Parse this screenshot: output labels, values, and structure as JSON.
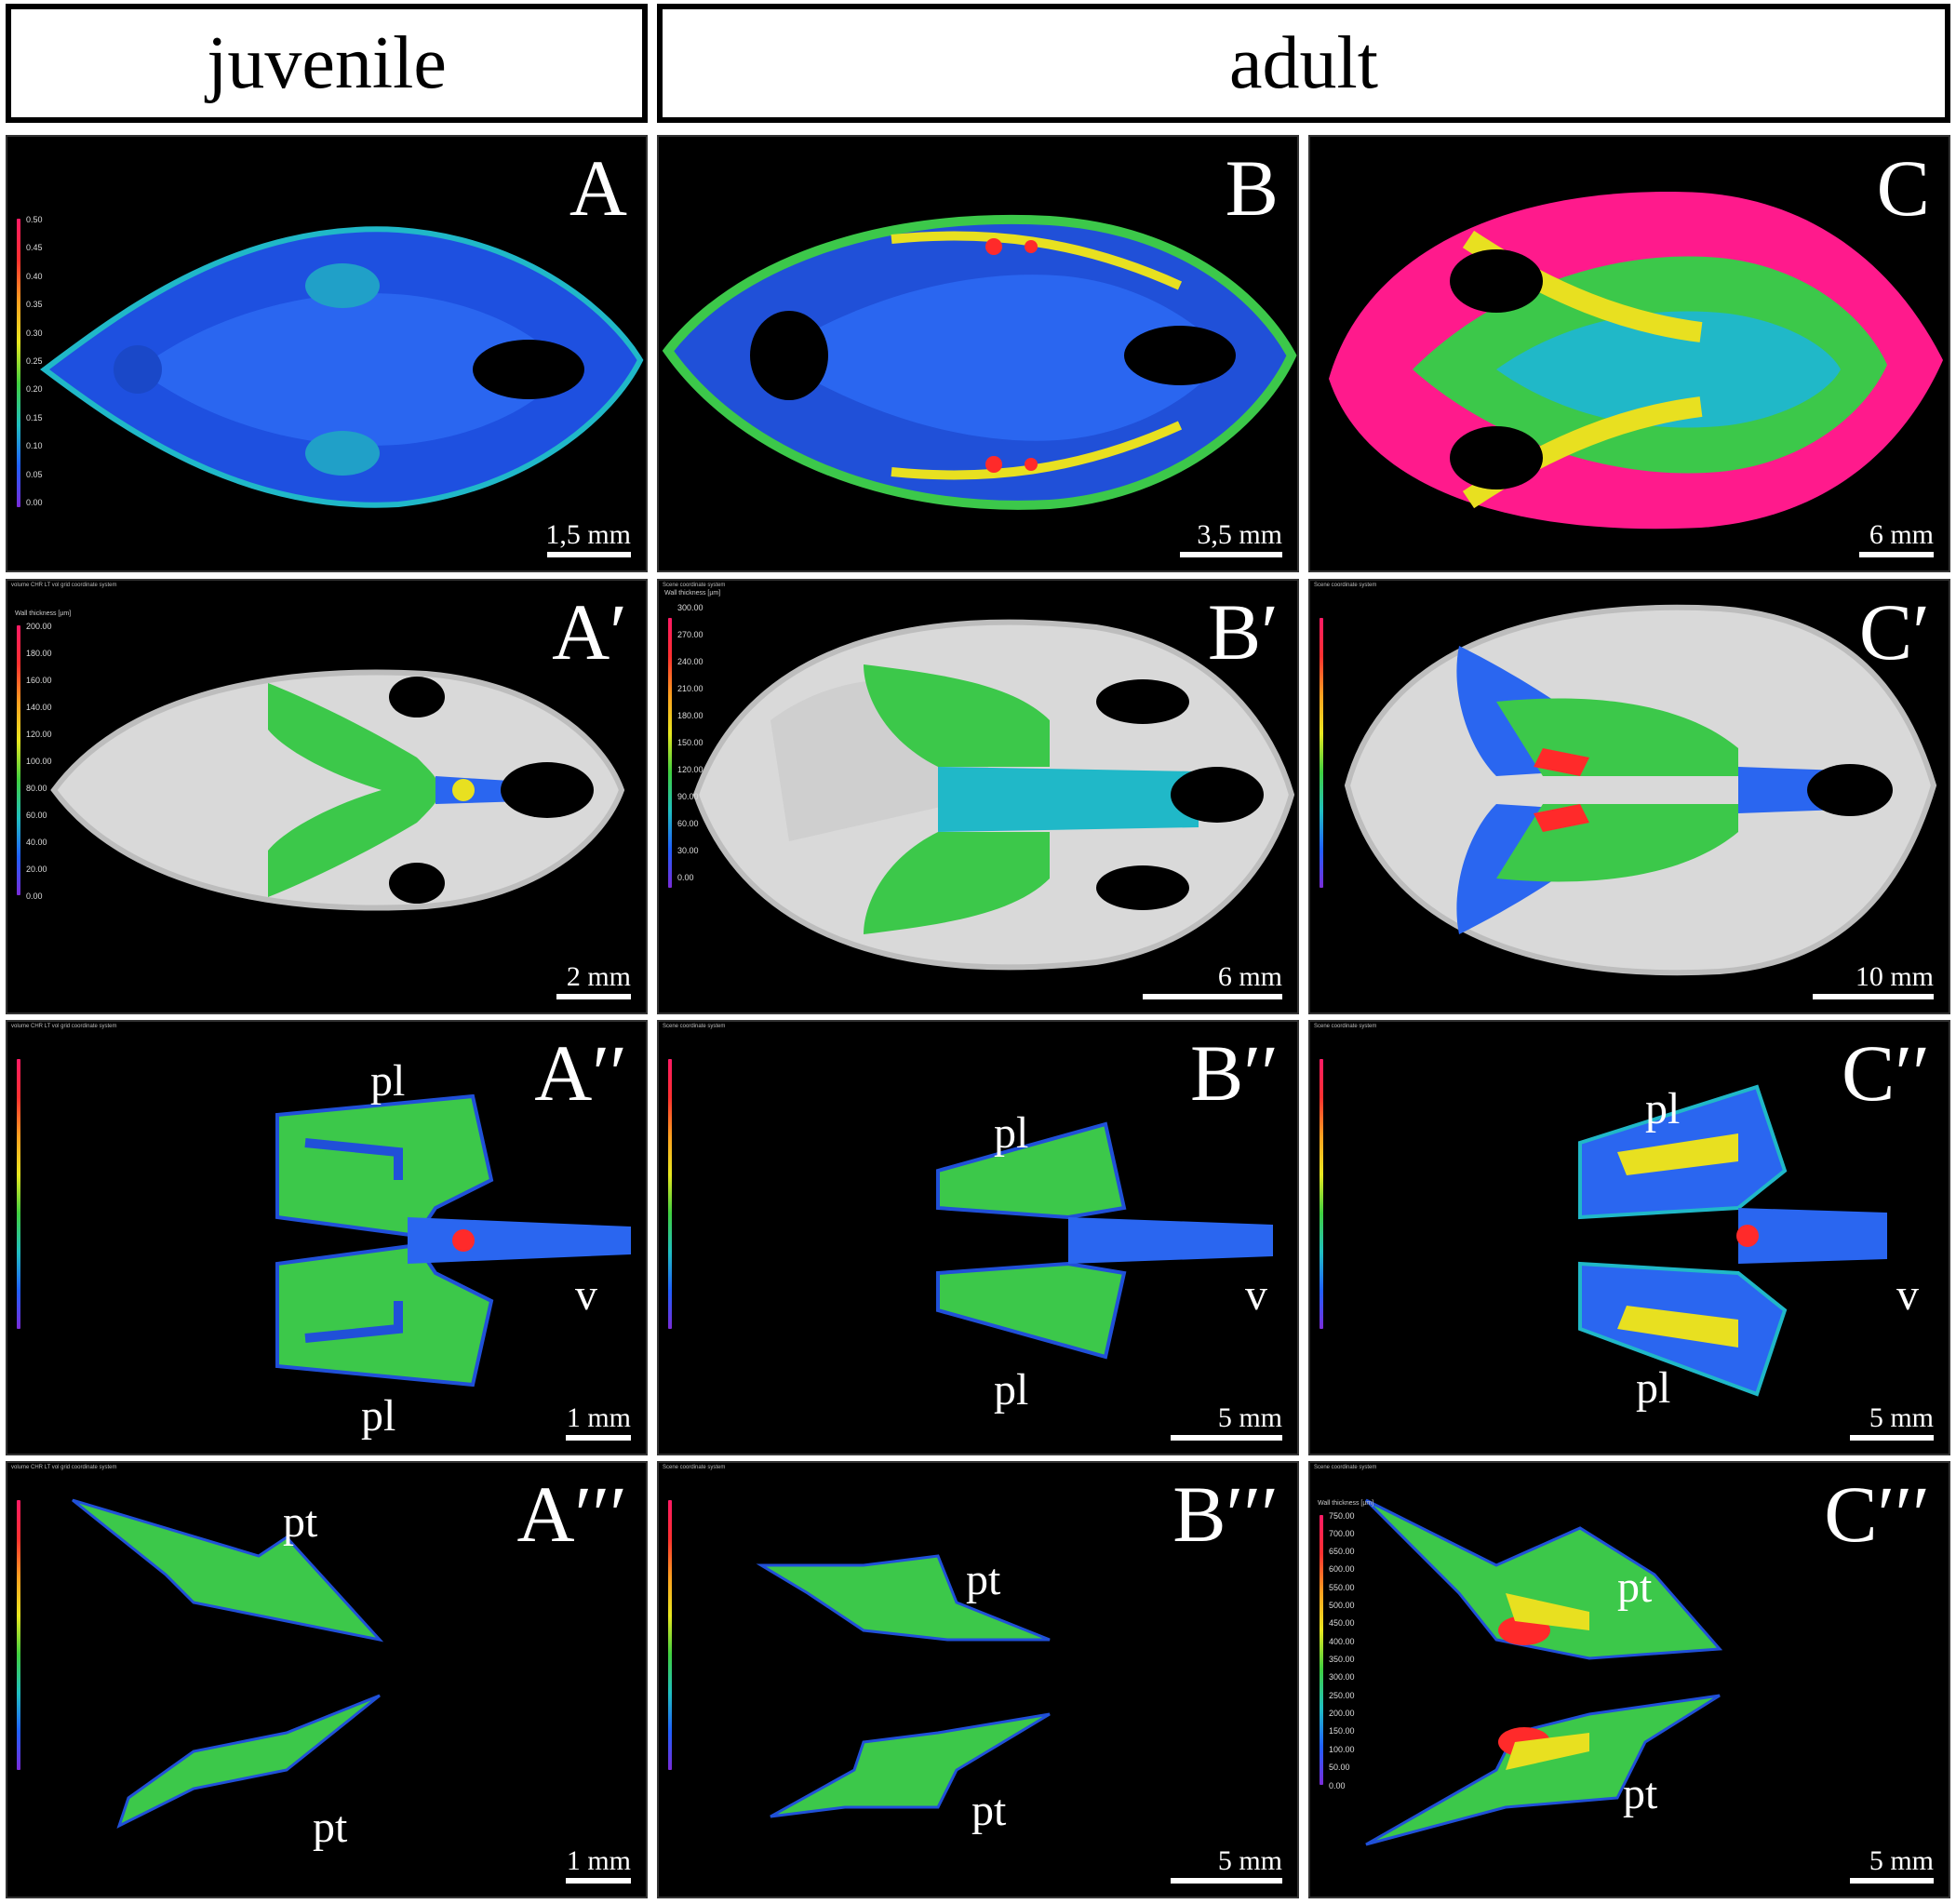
{
  "headers": {
    "juvenile": "juvenile",
    "adult": "adult"
  },
  "panels": {
    "A": {
      "label": "A",
      "scale": "1,5 mm"
    },
    "B": {
      "label": "B",
      "scale": "3,5 mm"
    },
    "C": {
      "label": "C",
      "scale": "6 mm"
    },
    "A1": {
      "label": "A′",
      "scale": "2 mm"
    },
    "B1": {
      "label": "B′",
      "scale": "6 mm"
    },
    "C1": {
      "label": "C′",
      "scale": "10 mm"
    },
    "A2": {
      "label": "A′′",
      "scale": "1 mm",
      "ann": {
        "pl_top": "pl",
        "pl_bottom": "pl",
        "v": "v"
      }
    },
    "B2": {
      "label": "B′′",
      "scale": "5 mm",
      "ann": {
        "pl_top": "pl",
        "pl_bottom": "pl",
        "v": "v"
      }
    },
    "C2": {
      "label": "C′′",
      "scale": "5 mm",
      "ann": {
        "pl_top": "pl",
        "pl_bottom": "pl",
        "v": "v"
      }
    },
    "A3": {
      "label": "A′′′",
      "scale": "1 mm",
      "ann": {
        "pt_top": "pt",
        "pt_bottom": "pt"
      }
    },
    "B3": {
      "label": "B′′′",
      "scale": "5 mm",
      "ann": {
        "pt_top": "pt",
        "pt_bottom": "pt"
      }
    },
    "C3": {
      "label": "C′′′",
      "scale": "5 mm",
      "ann": {
        "pt_top": "pt",
        "pt_bottom": "pt"
      }
    }
  },
  "legends": {
    "A": {
      "ticks": [
        "0.50",
        "0.45",
        "0.40",
        "0.35",
        "0.30",
        "0.25",
        "0.20",
        "0.15",
        "0.10",
        "0.05",
        "0.00"
      ]
    },
    "A_wall": {
      "title": "Wall thickness [µm]",
      "ticks": [
        "200.00",
        "180.00",
        "160.00",
        "140.00",
        "120.00",
        "100.00",
        "80.00",
        "60.00",
        "40.00",
        "20.00",
        "0.00"
      ]
    },
    "B_wall": {
      "title": "Wall thickness [µm]",
      "ticks": [
        "300.00",
        "270.00",
        "240.00",
        "210.00",
        "180.00",
        "150.00",
        "120.00",
        "90.00",
        "60.00",
        "30.00",
        "0.00"
      ]
    },
    "C_wall": {
      "title": "Wall thickness [µm]",
      "ticks": [
        "750.00",
        "700.00",
        "650.00",
        "600.00",
        "550.00",
        "500.00",
        "450.00",
        "400.00",
        "350.00",
        "300.00",
        "250.00",
        "200.00",
        "150.00",
        "100.00",
        "50.00",
        "0.00"
      ]
    }
  },
  "sys_text": {
    "A": "volume CHR LT vol grid coordinate system",
    "B": "Scene coordinate system"
  },
  "colors": {
    "blue": "#1e50e0",
    "cyan": "#20b8c8",
    "green": "#3cc84a",
    "yellow": "#e8e020",
    "red": "#ff2a2a",
    "magenta": "#ff1a8c",
    "bone": "#d9d9d9"
  }
}
